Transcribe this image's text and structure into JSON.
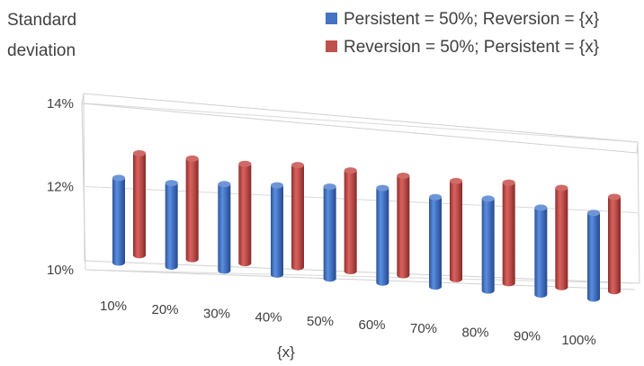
{
  "chart_data": {
    "type": "bar",
    "subtype": "3d-cylinder-clustered",
    "ylabel_line1": "Standard",
    "ylabel_line2": "deviation",
    "xlabel": "{x}",
    "categories": [
      "10%",
      "20%",
      "30%",
      "40%",
      "50%",
      "60%",
      "70%",
      "80%",
      "90%",
      "100%"
    ],
    "y_ticks": [
      "14%",
      "12%",
      "10%"
    ],
    "ylim": [
      10,
      14
    ],
    "grid": true,
    "legend_position": "top-right",
    "series": [
      {
        "name": "Persistent = 50%; Reversion = {x}",
        "color": "#4472c4",
        "values": [
          12.2,
          12.2,
          12.3,
          12.4,
          12.5,
          12.6,
          12.5,
          12.6,
          12.5,
          12.5
        ]
      },
      {
        "name": "Reversion = 50%; Persistent = {x}",
        "color": "#c0504d",
        "values": [
          12.5,
          12.5,
          12.5,
          12.6,
          12.6,
          12.6,
          12.6,
          12.7,
          12.7,
          12.6
        ]
      }
    ]
  }
}
